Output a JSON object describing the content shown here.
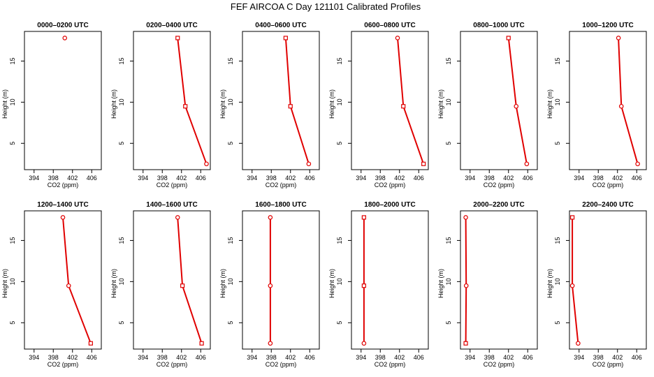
{
  "suptitle": "FEF AIRCOA C  Day 121101  Calibrated Profiles",
  "chart_data": [
    {
      "type": "line",
      "title": "0000–0200 UTC",
      "xlabel": "CO2 (ppm)",
      "ylabel": "Height (m)",
      "xlim": [
        392,
        408
      ],
      "ylim": [
        1.8,
        18.6
      ],
      "xticks": [
        394,
        398,
        402,
        406
      ],
      "yticks": [
        5,
        10,
        15
      ],
      "x": [
        400.4
      ],
      "y": [
        17.8
      ],
      "markers": [
        {
          "shape": "circle",
          "y": 17.8
        }
      ]
    },
    {
      "type": "line",
      "title": "0200–0400 UTC",
      "xlabel": "CO2 (ppm)",
      "ylabel": "Height (m)",
      "xlim": [
        392,
        408
      ],
      "ylim": [
        1.8,
        18.6
      ],
      "xticks": [
        394,
        398,
        402,
        406
      ],
      "yticks": [
        5,
        10,
        15
      ],
      "x": [
        401.2,
        402.8,
        407.2
      ],
      "y": [
        17.8,
        9.5,
        2.5
      ],
      "markers": [
        {
          "shape": "square",
          "y": 17.8
        },
        {
          "shape": "square",
          "y": 9.5
        },
        {
          "shape": "circle",
          "y": 2.5
        }
      ]
    },
    {
      "type": "line",
      "title": "0400–0600 UTC",
      "xlabel": "CO2 (ppm)",
      "ylabel": "Height (m)",
      "xlim": [
        392,
        408
      ],
      "ylim": [
        1.8,
        18.6
      ],
      "xticks": [
        394,
        398,
        402,
        406
      ],
      "yticks": [
        5,
        10,
        15
      ],
      "x": [
        401.0,
        402.0,
        405.8
      ],
      "y": [
        17.8,
        9.5,
        2.5
      ],
      "markers": [
        {
          "shape": "square",
          "y": 17.8
        },
        {
          "shape": "square",
          "y": 9.5
        },
        {
          "shape": "circle",
          "y": 2.5
        }
      ]
    },
    {
      "type": "line",
      "title": "0600–0800 UTC",
      "xlabel": "CO2 (ppm)",
      "ylabel": "Height (m)",
      "xlim": [
        392,
        408
      ],
      "ylim": [
        1.8,
        18.6
      ],
      "xticks": [
        394,
        398,
        402,
        406
      ],
      "yticks": [
        5,
        10,
        15
      ],
      "x": [
        401.6,
        402.8,
        407.0
      ],
      "y": [
        17.8,
        9.5,
        2.5
      ],
      "markers": [
        {
          "shape": "circle",
          "y": 17.8
        },
        {
          "shape": "square",
          "y": 9.5
        },
        {
          "shape": "square",
          "y": 2.5
        }
      ]
    },
    {
      "type": "line",
      "title": "0800–1000 UTC",
      "xlabel": "CO2 (ppm)",
      "ylabel": "Height (m)",
      "xlim": [
        392,
        408
      ],
      "ylim": [
        1.8,
        18.6
      ],
      "xticks": [
        394,
        398,
        402,
        406
      ],
      "yticks": [
        5,
        10,
        15
      ],
      "x": [
        402.0,
        403.6,
        405.8
      ],
      "y": [
        17.8,
        9.5,
        2.5
      ],
      "markers": [
        {
          "shape": "square",
          "y": 17.8
        },
        {
          "shape": "circle",
          "y": 9.5
        },
        {
          "shape": "circle",
          "y": 2.5
        }
      ]
    },
    {
      "type": "line",
      "title": "1000–1200 UTC",
      "xlabel": "CO2 (ppm)",
      "ylabel": "Height (m)",
      "xlim": [
        392,
        408
      ],
      "ylim": [
        1.8,
        18.6
      ],
      "xticks": [
        394,
        398,
        402,
        406
      ],
      "yticks": [
        5,
        10,
        15
      ],
      "x": [
        402.2,
        402.8,
        406.2
      ],
      "y": [
        17.8,
        9.5,
        2.5
      ],
      "markers": [
        {
          "shape": "circle",
          "y": 17.8
        },
        {
          "shape": "circle",
          "y": 9.5
        },
        {
          "shape": "circle",
          "y": 2.5
        }
      ]
    },
    {
      "type": "line",
      "title": "1200–1400 UTC",
      "xlabel": "CO2 (ppm)",
      "ylabel": "Height (m)",
      "xlim": [
        392,
        408
      ],
      "ylim": [
        1.8,
        18.6
      ],
      "xticks": [
        394,
        398,
        402,
        406
      ],
      "yticks": [
        5,
        10,
        15
      ],
      "x": [
        400.0,
        401.2,
        405.8
      ],
      "y": [
        17.8,
        9.5,
        2.5
      ],
      "markers": [
        {
          "shape": "circle",
          "y": 17.8
        },
        {
          "shape": "circle",
          "y": 9.5
        },
        {
          "shape": "square",
          "y": 2.5
        }
      ]
    },
    {
      "type": "line",
      "title": "1400–1600 UTC",
      "xlabel": "CO2 (ppm)",
      "ylabel": "Height (m)",
      "xlim": [
        392,
        408
      ],
      "ylim": [
        1.8,
        18.6
      ],
      "xticks": [
        394,
        398,
        402,
        406
      ],
      "yticks": [
        5,
        10,
        15
      ],
      "x": [
        401.2,
        402.2,
        406.2
      ],
      "y": [
        17.8,
        9.5,
        2.5
      ],
      "markers": [
        {
          "shape": "circle",
          "y": 17.8
        },
        {
          "shape": "square",
          "y": 9.5
        },
        {
          "shape": "square",
          "y": 2.5
        }
      ]
    },
    {
      "type": "line",
      "title": "1600–1800 UTC",
      "xlabel": "CO2 (ppm)",
      "ylabel": "Height (m)",
      "xlim": [
        392,
        408
      ],
      "ylim": [
        1.8,
        18.6
      ],
      "xticks": [
        394,
        398,
        402,
        406
      ],
      "yticks": [
        5,
        10,
        15
      ],
      "x": [
        397.8,
        397.8,
        397.8
      ],
      "y": [
        17.8,
        9.5,
        2.5
      ],
      "markers": [
        {
          "shape": "circle",
          "y": 17.8
        },
        {
          "shape": "circle",
          "y": 9.5
        },
        {
          "shape": "circle",
          "y": 2.5
        }
      ]
    },
    {
      "type": "line",
      "title": "1800–2000 UTC",
      "xlabel": "CO2 (ppm)",
      "ylabel": "Height (m)",
      "xlim": [
        392,
        408
      ],
      "ylim": [
        1.8,
        18.6
      ],
      "xticks": [
        394,
        398,
        402,
        406
      ],
      "yticks": [
        5,
        10,
        15
      ],
      "x": [
        394.6,
        394.6,
        394.6
      ],
      "y": [
        17.8,
        9.5,
        2.5
      ],
      "markers": [
        {
          "shape": "square",
          "y": 17.8
        },
        {
          "shape": "square",
          "y": 9.5
        },
        {
          "shape": "circle",
          "y": 2.5
        }
      ]
    },
    {
      "type": "line",
      "title": "2000–2200 UTC",
      "xlabel": "CO2 (ppm)",
      "ylabel": "Height (m)",
      "xlim": [
        392,
        408
      ],
      "ylim": [
        1.8,
        18.6
      ],
      "xticks": [
        394,
        398,
        402,
        406
      ],
      "yticks": [
        5,
        10,
        15
      ],
      "x": [
        393.1,
        393.2,
        393.1
      ],
      "y": [
        17.8,
        9.5,
        2.5
      ],
      "markers": [
        {
          "shape": "circle",
          "y": 17.8
        },
        {
          "shape": "circle",
          "y": 9.5
        },
        {
          "shape": "square",
          "y": 2.5
        }
      ]
    },
    {
      "type": "line",
      "title": "2200–2400 UTC",
      "xlabel": "CO2 (ppm)",
      "ylabel": "Height (m)",
      "xlim": [
        392,
        408
      ],
      "ylim": [
        1.8,
        18.6
      ],
      "xticks": [
        394,
        398,
        402,
        406
      ],
      "yticks": [
        5,
        10,
        15
      ],
      "x": [
        392.6,
        392.6,
        393.8
      ],
      "y": [
        17.8,
        9.5,
        2.5
      ],
      "markers": [
        {
          "shape": "square",
          "y": 17.8
        },
        {
          "shape": "circle",
          "y": 9.5
        },
        {
          "shape": "circle",
          "y": 2.5
        }
      ]
    }
  ]
}
